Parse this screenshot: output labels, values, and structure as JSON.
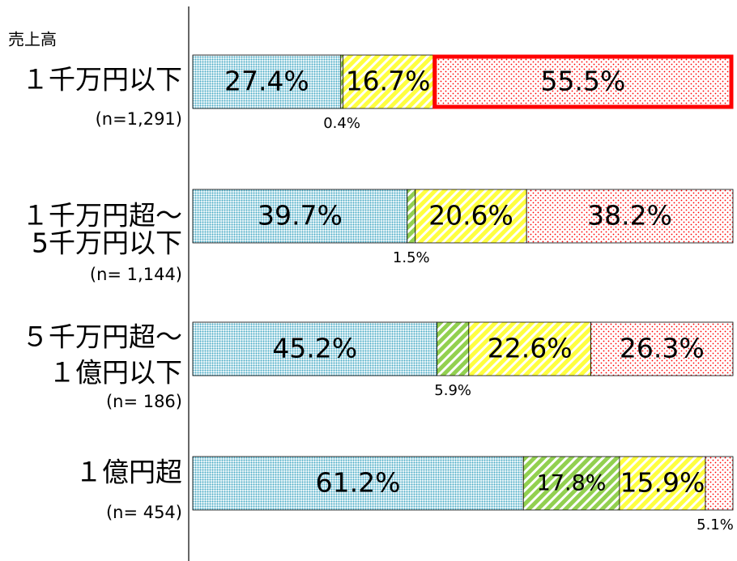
{
  "chart_data": {
    "type": "stacked_barh",
    "axis_title": "売上高",
    "categories": [
      [
        "１千万円以下"
      ],
      [
        "１千万円超～",
        "5千万円以下"
      ],
      [
        "５千万円超～",
        "１億円以下"
      ],
      [
        "１億円超"
      ]
    ],
    "sample_sizes": [
      "(n=1,291)",
      "(n= 1,144)",
      "(n= 186)",
      "(n= 454)"
    ],
    "xlim": [
      0,
      100
    ],
    "series": [
      {
        "color": "#4bacc6",
        "pattern": "dots",
        "values": [
          27.4,
          39.7,
          45.2,
          61.2
        ],
        "value_labels": [
          "27.4%",
          "39.7%",
          "45.2%",
          "61.2%"
        ]
      },
      {
        "color": "#92d050",
        "pattern": "stripes",
        "values": [
          0.4,
          1.5,
          5.9,
          17.8
        ],
        "value_labels": [
          "0.4%",
          "1.5%",
          "5.9%",
          "17.8%"
        ]
      },
      {
        "color": "#ffff40",
        "pattern": "stripes",
        "values": [
          16.7,
          20.6,
          22.6,
          15.9
        ],
        "value_labels": [
          "16.7%",
          "20.6%",
          "22.6%",
          "15.9%"
        ]
      },
      {
        "color": "#ff0000",
        "pattern": "sparse-dots",
        "values": [
          55.5,
          38.2,
          26.3,
          5.1
        ],
        "value_labels": [
          "55.5%",
          "38.2%",
          "26.3%",
          "5.1%"
        ]
      }
    ],
    "highlight": {
      "category": 0,
      "series": 3,
      "color": "#ff0000"
    }
  }
}
